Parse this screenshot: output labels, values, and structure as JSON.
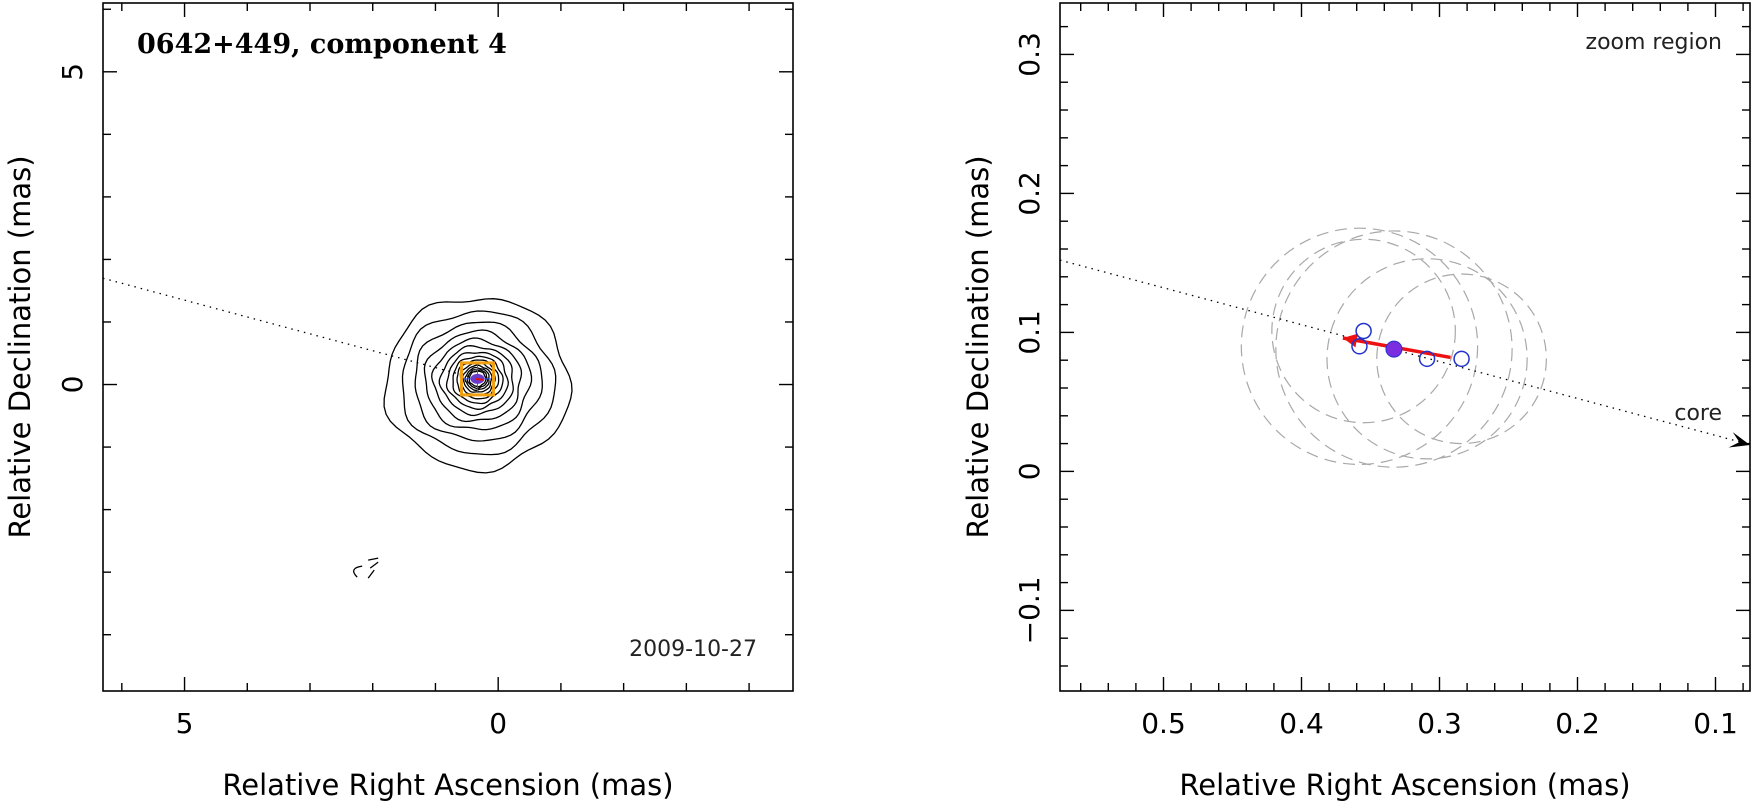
{
  "chart_data": [
    {
      "type": "contour",
      "title": "0642+449, component 4",
      "date_label": "2009-10-27",
      "xlabel": "Relative Right Ascension (mas)",
      "ylabel": "Relative Declination (mas)",
      "xlim": [
        6.3,
        -4.7
      ],
      "ylim": [
        -4.9,
        6.1
      ],
      "x_ticks": [
        5,
        0
      ],
      "y_ticks": [
        5,
        0
      ],
      "x_tick_labels": [
        "5",
        "0"
      ],
      "y_tick_labels": [
        "5",
        "0"
      ],
      "contour_center": [
        0.33,
        0.1
      ],
      "contour_levels": 14,
      "outer_contour_radius_mas": 1.4,
      "trajectory_line": {
        "from": [
          6.3,
          1.7
        ],
        "to": [
          0.33,
          0.09
        ],
        "style": "dotted"
      },
      "component_box_center": [
        0.33,
        0.09
      ],
      "component_position": [
        0.33,
        0.09
      ],
      "extra_contour_position": [
        2.2,
        -3.0
      ],
      "colors": {
        "contours": "#000000",
        "box": "#f0a010",
        "component": "#6a3ccc",
        "errorbar": "#3355ff"
      }
    },
    {
      "type": "scatter",
      "title": "zoom region",
      "xlabel": "Relative Right Ascension (mas)",
      "ylabel": "Relative Declination (mas)",
      "xlim": [
        0.575,
        0.075
      ],
      "ylim": [
        -0.158,
        0.337
      ],
      "x_ticks": [
        0.5,
        0.4,
        0.3,
        0.2,
        0.1
      ],
      "x_tick_labels": [
        "0.5",
        "0.4",
        "0.3",
        "0.2",
        "0.1"
      ],
      "y_ticks": [
        -0.1,
        0,
        0.1,
        0.2,
        0.3
      ],
      "y_tick_labels": [
        "−0.1",
        "0",
        "0.1",
        "0.2",
        "0.3"
      ],
      "core_label": "core",
      "open_points": [
        {
          "x": 0.355,
          "y": 0.101
        },
        {
          "x": 0.358,
          "y": 0.09
        },
        {
          "x": 0.309,
          "y": 0.081
        },
        {
          "x": 0.284,
          "y": 0.081
        }
      ],
      "filled_point": {
        "x": 0.333,
        "y": 0.088
      },
      "uncertainty_circles": [
        {
          "x": 0.358,
          "y": 0.09,
          "r": 0.085
        },
        {
          "x": 0.333,
          "y": 0.088,
          "r": 0.085
        },
        {
          "x": 0.309,
          "y": 0.081,
          "r": 0.072
        },
        {
          "x": 0.284,
          "y": 0.081,
          "r": 0.061
        },
        {
          "x": 0.355,
          "y": 0.101,
          "r": 0.066
        }
      ],
      "trajectory_line": {
        "from": [
          0.575,
          0.152
        ],
        "to": [
          0.075,
          0.019
        ],
        "style": "dotted"
      },
      "motion_vector": {
        "from": [
          0.292,
          0.082
        ],
        "to": [
          0.37,
          0.096
        ]
      },
      "colors": {
        "points": "#2233cc",
        "filled": "#7a2ee0",
        "vector": "#ee1111",
        "circles": "#a8a8a8"
      }
    }
  ]
}
